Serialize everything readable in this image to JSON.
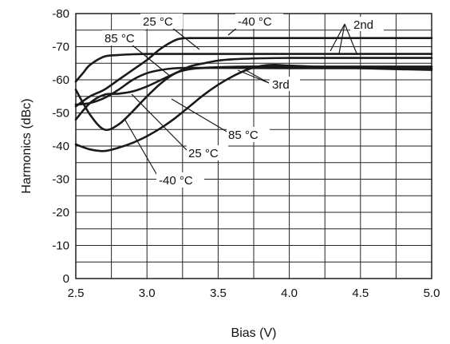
{
  "chart_data": {
    "type": "line",
    "title": "",
    "xlabel": "Bias (V)",
    "ylabel": "Harmonics (dBc)",
    "xlim": [
      2.5,
      5.0
    ],
    "ylim": [
      0,
      -80
    ],
    "xticks": [
      2.5,
      3.0,
      3.5,
      4.0,
      4.5,
      5.0
    ],
    "xtick_labels": [
      "2.5",
      "3.0",
      "3.5",
      "4.0",
      "4.5",
      "5.0"
    ],
    "yticks": [
      -80,
      -70,
      -60,
      -50,
      -40,
      -30,
      -20,
      -10,
      0
    ],
    "ytick_labels": [
      "-80",
      "-70",
      "-60",
      "-50",
      "-40",
      "-30",
      "-20",
      "-10",
      "0"
    ],
    "grid": true,
    "legend": "none",
    "series": [
      {
        "x": [
          2.5,
          2.6,
          2.7,
          2.8,
          2.9,
          3.0,
          3.1,
          3.2,
          3.25,
          3.3,
          3.4,
          3.5,
          4.0,
          4.5,
          5.0
        ],
        "y": [
          -52,
          -55,
          -57,
          -60,
          -63,
          -66,
          -69.5,
          -72,
          -72.5,
          -72.6,
          -72.6,
          -72.6,
          -72.6,
          -72.6,
          -72.6
        ]
      },
      {
        "x": [
          2.5,
          2.55,
          2.6,
          2.7,
          2.8,
          2.9,
          3.0,
          3.1,
          3.2,
          3.3,
          3.5,
          4.0,
          5.0
        ],
        "y": [
          -59.5,
          -62,
          -64.5,
          -67,
          -67.5,
          -67.7,
          -67.8,
          -67.8,
          -67.8,
          -67.8,
          -67.8,
          -67.8,
          -67.8
        ]
      },
      {
        "x": [
          2.5,
          2.6,
          2.7,
          2.8,
          2.9,
          3.0,
          3.1,
          3.2,
          3.3,
          3.4,
          3.5,
          3.6,
          3.8,
          4.0,
          4.5,
          5.0
        ],
        "y": [
          -48,
          -53,
          -55.5,
          -55.8,
          -56.5,
          -58,
          -60,
          -62,
          -64,
          -65,
          -65.8,
          -66.2,
          -66.5,
          -66.6,
          -66.6,
          -66.6
        ]
      },
      {
        "x": [
          2.5,
          2.6,
          2.7,
          2.8,
          2.9,
          3.0,
          3.1,
          3.2,
          3.3,
          3.4,
          3.5,
          3.7,
          4.0,
          5.0
        ],
        "y": [
          -57,
          -49.5,
          -45,
          -46.5,
          -50.5,
          -55,
          -59,
          -62,
          -63.2,
          -63.6,
          -63.8,
          -64,
          -64,
          -64
        ]
      },
      {
        "x": [
          2.5,
          2.6,
          2.7,
          2.8,
          2.9,
          3.0,
          3.1,
          3.2,
          3.3,
          3.4,
          3.5,
          4.0,
          5.0
        ],
        "y": [
          -52.5,
          -53,
          -54.5,
          -57,
          -60,
          -62,
          -63,
          -63.5,
          -63.6,
          -63.6,
          -63.6,
          -63.5,
          -63.5
        ]
      },
      {
        "x": [
          2.5,
          2.6,
          2.7,
          2.8,
          2.9,
          3.0,
          3.1,
          3.2,
          3.3,
          3.4,
          3.5,
          3.6,
          3.7,
          3.8,
          3.9,
          4.0,
          4.5,
          5.0
        ],
        "y": [
          -40.5,
          -39,
          -38.5,
          -39.5,
          -41,
          -43,
          -45.5,
          -48.5,
          -52,
          -55.5,
          -58.5,
          -61,
          -63,
          -64.2,
          -64.5,
          -64.3,
          -63.5,
          -63
        ]
      }
    ],
    "annotations": [
      "25 °C",
      "-40 °C",
      "85 °C",
      "2nd",
      "3rd",
      "85 °C",
      "25 °C",
      "-40 °C"
    ]
  }
}
